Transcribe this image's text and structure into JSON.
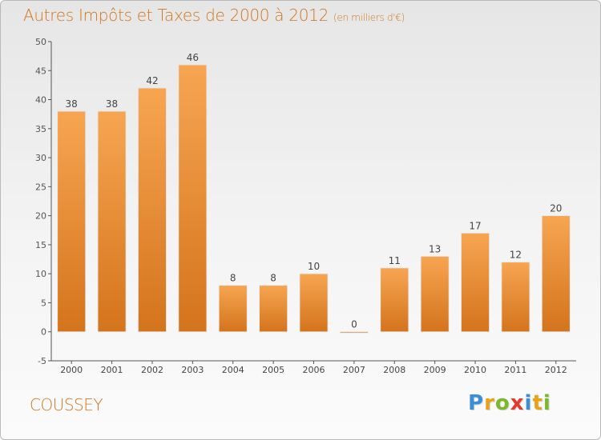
{
  "chart_data": {
    "type": "bar",
    "title": "Autres Impôts et Taxes de 2000 à 2012",
    "subtitle": "(en milliers d'€)",
    "categories": [
      "2000",
      "2001",
      "2002",
      "2003",
      "2004",
      "2005",
      "2006",
      "2007",
      "2008",
      "2009",
      "2010",
      "2011",
      "2012"
    ],
    "values": [
      38,
      38,
      42,
      46,
      8,
      8,
      10,
      0,
      11,
      13,
      17,
      12,
      20
    ],
    "ylim": [
      -5,
      50
    ],
    "yticks": [
      -5,
      0,
      5,
      10,
      15,
      20,
      25,
      30,
      35,
      40,
      45,
      50
    ],
    "grid": false,
    "xlabel": "",
    "ylabel": "",
    "bar_color_light": "#f7a552",
    "bar_color_dark": "#d4741c",
    "text_color": "#d0761f"
  },
  "footer": {
    "commune": "COUSSEY"
  },
  "logo": {
    "letters": [
      {
        "ch": "P",
        "color": "#3a8fd6"
      },
      {
        "ch": "r",
        "color": "#e8a21a"
      },
      {
        "ch": "o",
        "color": "#7cb82f"
      },
      {
        "ch": "x",
        "color": "#e23a2d"
      },
      {
        "ch": "i",
        "color": "#3a8fd6"
      },
      {
        "ch": "t",
        "color": "#e8a21a"
      },
      {
        "ch": "i",
        "color": "#7cb82f"
      }
    ]
  }
}
